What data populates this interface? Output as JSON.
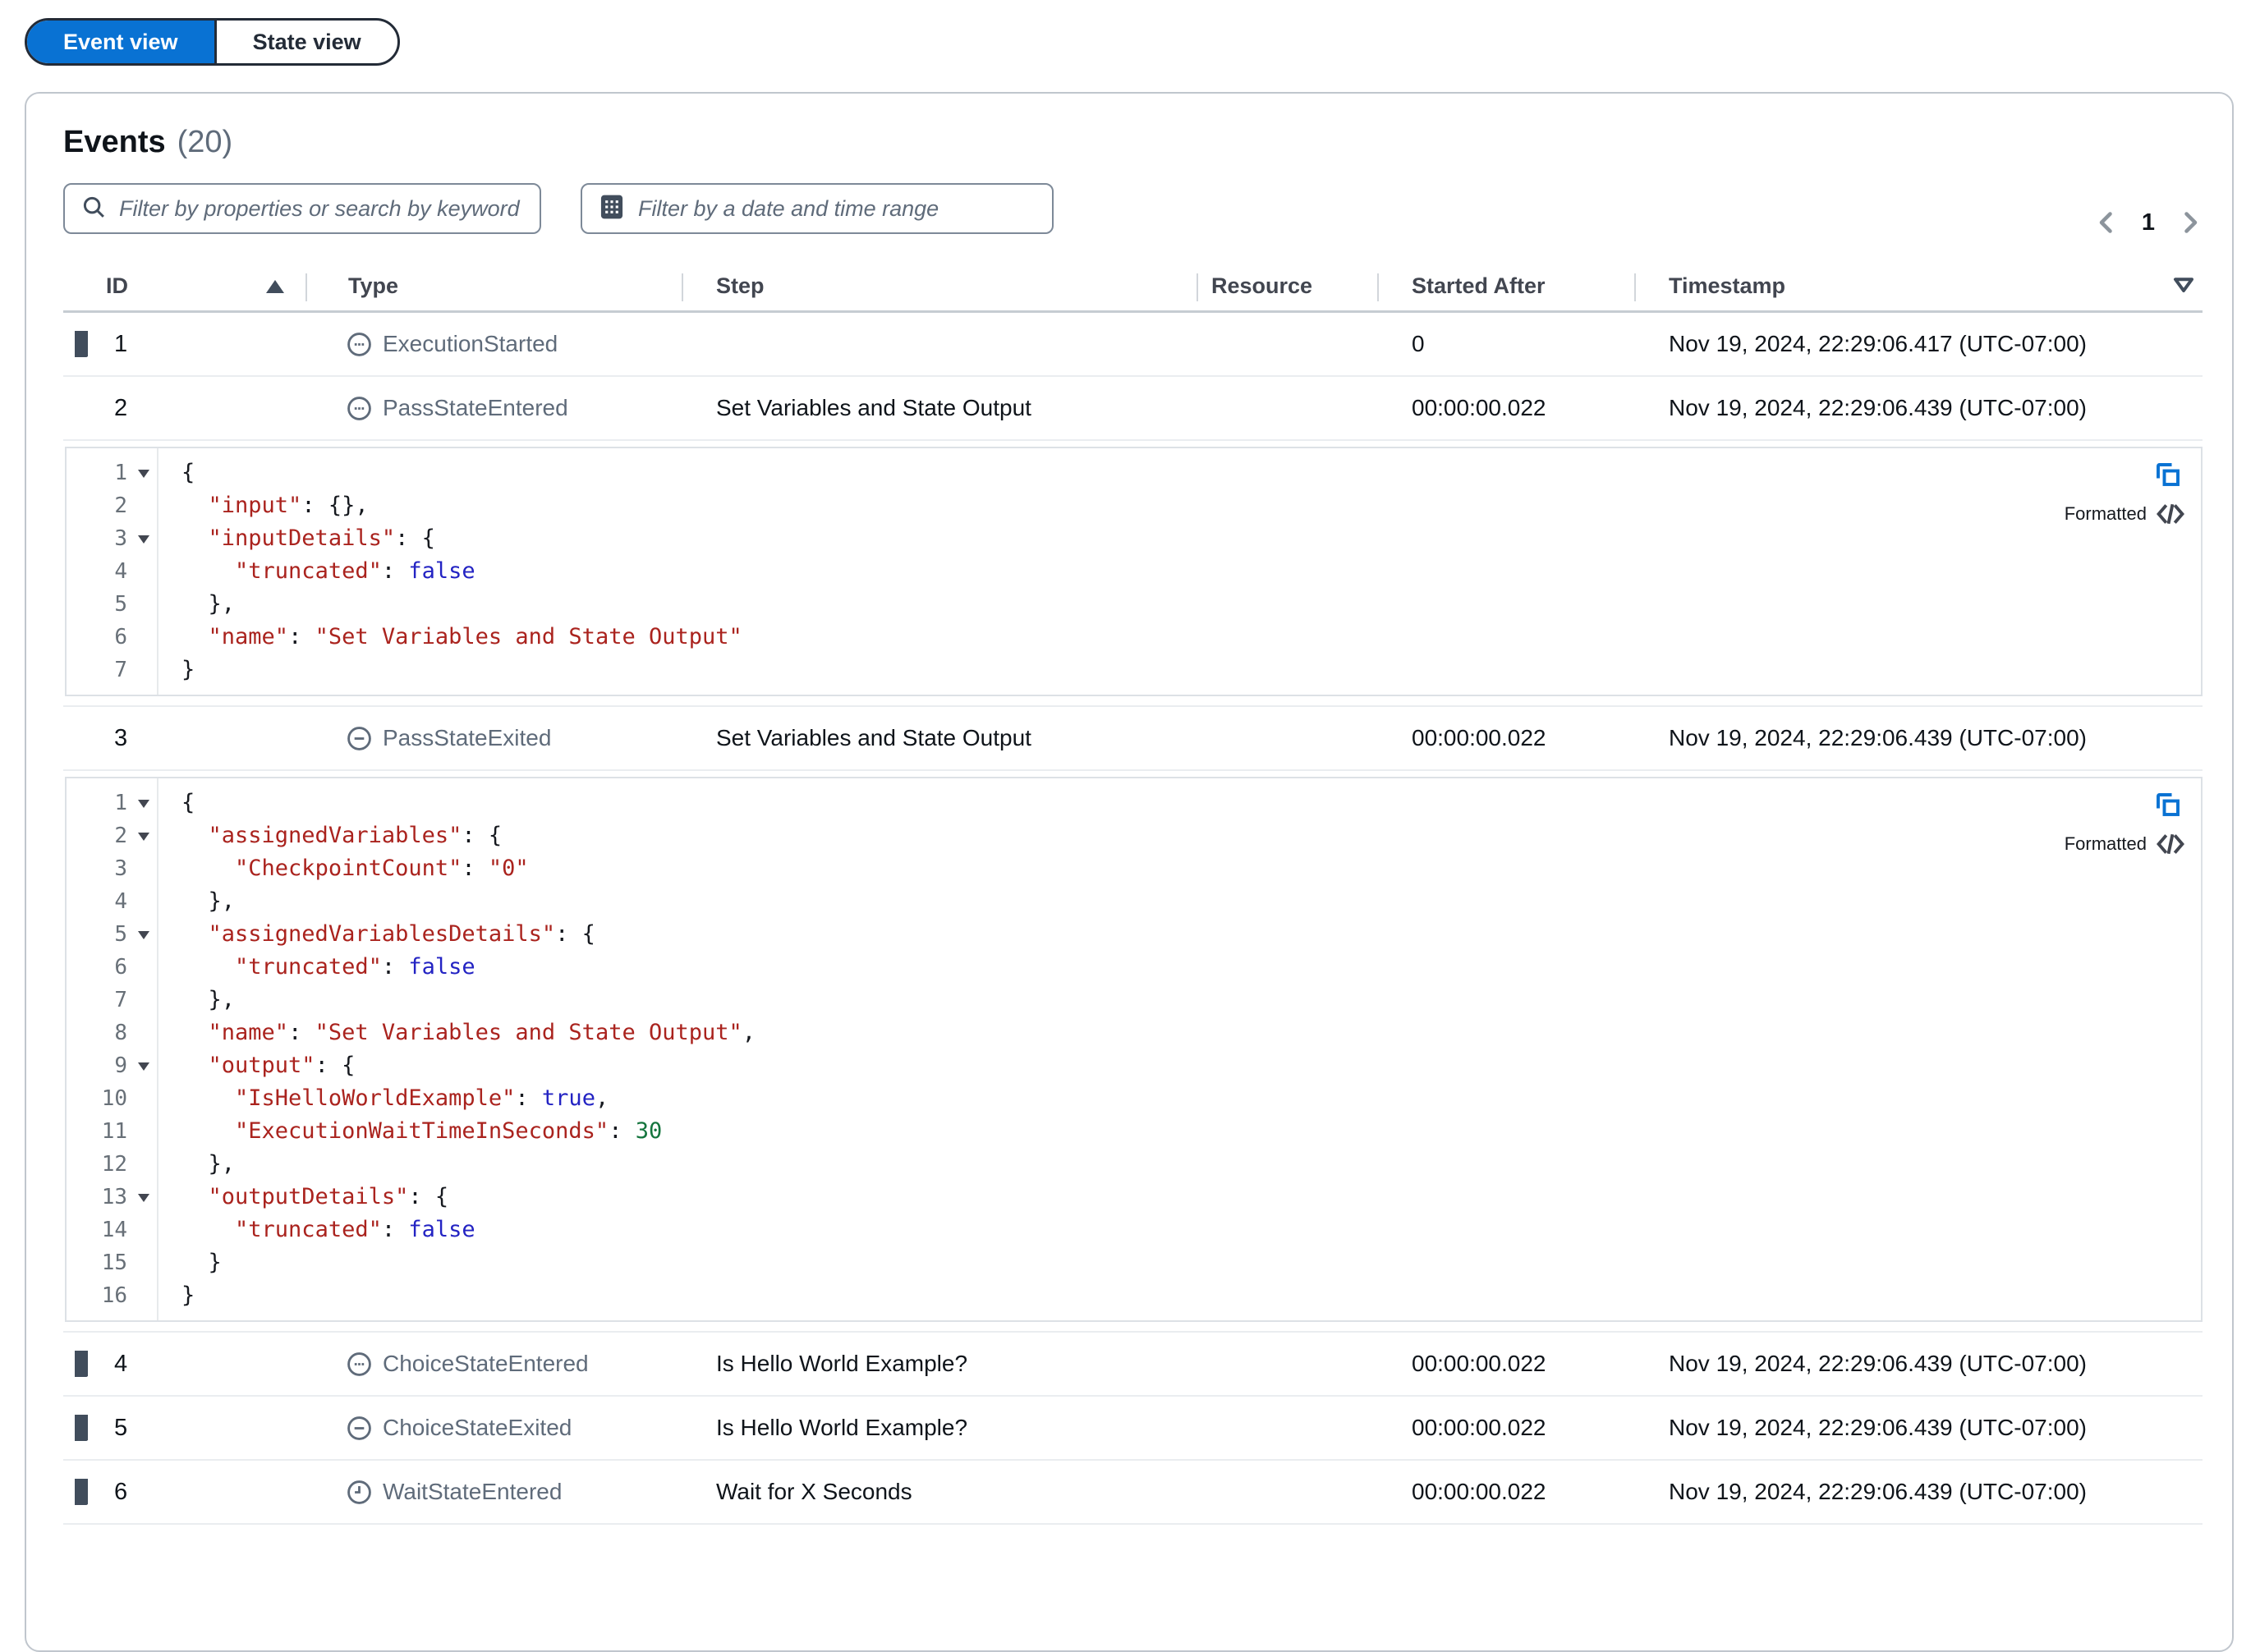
{
  "view_toggle": {
    "options": [
      {
        "label": "Event view",
        "selected": true
      },
      {
        "label": "State view",
        "selected": false
      }
    ]
  },
  "panel": {
    "title": "Events",
    "count": "(20)"
  },
  "filters": {
    "search_placeholder": "Filter by properties or search by keyword",
    "date_placeholder": "Filter by a date and time range"
  },
  "pagination": {
    "current_page": "1"
  },
  "table": {
    "columns": {
      "id": "ID",
      "type": "Type",
      "step": "Step",
      "resource": "Resource",
      "started_after": "Started After",
      "timestamp": "Timestamp"
    },
    "rows": [
      {
        "id": "1",
        "type": "ExecutionStarted",
        "icon": "status-pending-icon",
        "step": "",
        "resource": "",
        "started_after": "0",
        "timestamp": "Nov 19, 2024, 22:29:06.417 (UTC-07:00)",
        "expanded": false
      },
      {
        "id": "2",
        "type": "PassStateEntered",
        "icon": "status-pending-icon",
        "step": "Set Variables and State Output",
        "resource": "",
        "started_after": "00:00:00.022",
        "timestamp": "Nov 19, 2024, 22:29:06.439 (UTC-07:00)",
        "expanded": true
      },
      {
        "id": "3",
        "type": "PassStateExited",
        "icon": "status-stopped-icon",
        "step": "Set Variables and State Output",
        "resource": "",
        "started_after": "00:00:00.022",
        "timestamp": "Nov 19, 2024, 22:29:06.439 (UTC-07:00)",
        "expanded": true
      },
      {
        "id": "4",
        "type": "ChoiceStateEntered",
        "icon": "status-pending-icon",
        "step": "Is Hello World Example?",
        "resource": "",
        "started_after": "00:00:00.022",
        "timestamp": "Nov 19, 2024, 22:29:06.439 (UTC-07:00)",
        "expanded": false
      },
      {
        "id": "5",
        "type": "ChoiceStateExited",
        "icon": "status-stopped-icon",
        "step": "Is Hello World Example?",
        "resource": "",
        "started_after": "00:00:00.022",
        "timestamp": "Nov 19, 2024, 22:29:06.439 (UTC-07:00)",
        "expanded": false
      },
      {
        "id": "6",
        "type": "WaitStateEntered",
        "icon": "clock-icon",
        "step": "Wait for X Seconds",
        "resource": "",
        "started_after": "00:00:00.022",
        "timestamp": "Nov 19, 2024, 22:29:06.439 (UTC-07:00)",
        "expanded": false
      }
    ]
  },
  "code_blocks": [
    {
      "format_label": "Formatted",
      "lines": [
        {
          "n": 1,
          "fold": true,
          "ind": 0,
          "toks": [
            [
              "p",
              "{"
            ]
          ]
        },
        {
          "n": 2,
          "fold": false,
          "ind": 1,
          "toks": [
            [
              "k",
              "\"input\""
            ],
            [
              "p",
              ": "
            ],
            [
              "p",
              "{},"
            ]
          ]
        },
        {
          "n": 3,
          "fold": true,
          "ind": 1,
          "toks": [
            [
              "k",
              "\"inputDetails\""
            ],
            [
              "p",
              ": "
            ],
            [
              "p",
              "{"
            ]
          ]
        },
        {
          "n": 4,
          "fold": false,
          "ind": 2,
          "toks": [
            [
              "k",
              "\"truncated\""
            ],
            [
              "p",
              ": "
            ],
            [
              "b",
              "false"
            ]
          ]
        },
        {
          "n": 5,
          "fold": false,
          "ind": 1,
          "toks": [
            [
              "p",
              "},"
            ]
          ]
        },
        {
          "n": 6,
          "fold": false,
          "ind": 1,
          "toks": [
            [
              "k",
              "\"name\""
            ],
            [
              "p",
              ": "
            ],
            [
              "s",
              "\"Set Variables and State Output\""
            ]
          ]
        },
        {
          "n": 7,
          "fold": false,
          "ind": 0,
          "toks": [
            [
              "p",
              "}"
            ]
          ]
        }
      ]
    },
    {
      "format_label": "Formatted",
      "lines": [
        {
          "n": 1,
          "fold": true,
          "ind": 0,
          "toks": [
            [
              "p",
              "{"
            ]
          ]
        },
        {
          "n": 2,
          "fold": true,
          "ind": 1,
          "toks": [
            [
              "k",
              "\"assignedVariables\""
            ],
            [
              "p",
              ": "
            ],
            [
              "p",
              "{"
            ]
          ]
        },
        {
          "n": 3,
          "fold": false,
          "ind": 2,
          "toks": [
            [
              "k",
              "\"CheckpointCount\""
            ],
            [
              "p",
              ": "
            ],
            [
              "s",
              "\"0\""
            ]
          ]
        },
        {
          "n": 4,
          "fold": false,
          "ind": 1,
          "toks": [
            [
              "p",
              "},"
            ]
          ]
        },
        {
          "n": 5,
          "fold": true,
          "ind": 1,
          "toks": [
            [
              "k",
              "\"assignedVariablesDetails\""
            ],
            [
              "p",
              ": "
            ],
            [
              "p",
              "{"
            ]
          ]
        },
        {
          "n": 6,
          "fold": false,
          "ind": 2,
          "toks": [
            [
              "k",
              "\"truncated\""
            ],
            [
              "p",
              ": "
            ],
            [
              "b",
              "false"
            ]
          ]
        },
        {
          "n": 7,
          "fold": false,
          "ind": 1,
          "toks": [
            [
              "p",
              "},"
            ]
          ]
        },
        {
          "n": 8,
          "fold": false,
          "ind": 1,
          "toks": [
            [
              "k",
              "\"name\""
            ],
            [
              "p",
              ": "
            ],
            [
              "s",
              "\"Set Variables and State Output\""
            ],
            [
              "p",
              ","
            ]
          ]
        },
        {
          "n": 9,
          "fold": true,
          "ind": 1,
          "toks": [
            [
              "k",
              "\"output\""
            ],
            [
              "p",
              ": "
            ],
            [
              "p",
              "{"
            ]
          ]
        },
        {
          "n": 10,
          "fold": false,
          "ind": 2,
          "toks": [
            [
              "k",
              "\"IsHelloWorldExample\""
            ],
            [
              "p",
              ": "
            ],
            [
              "b",
              "true"
            ],
            [
              "p",
              ","
            ]
          ]
        },
        {
          "n": 11,
          "fold": false,
          "ind": 2,
          "toks": [
            [
              "k",
              "\"ExecutionWaitTimeInSeconds\""
            ],
            [
              "p",
              ": "
            ],
            [
              "num",
              "30"
            ]
          ]
        },
        {
          "n": 12,
          "fold": false,
          "ind": 1,
          "toks": [
            [
              "p",
              "},"
            ]
          ]
        },
        {
          "n": 13,
          "fold": true,
          "ind": 1,
          "toks": [
            [
              "k",
              "\"outputDetails\""
            ],
            [
              "p",
              ": "
            ],
            [
              "p",
              "{"
            ]
          ]
        },
        {
          "n": 14,
          "fold": false,
          "ind": 2,
          "toks": [
            [
              "k",
              "\"truncated\""
            ],
            [
              "p",
              ": "
            ],
            [
              "b",
              "false"
            ]
          ]
        },
        {
          "n": 15,
          "fold": false,
          "ind": 1,
          "toks": [
            [
              "p",
              "}"
            ]
          ]
        },
        {
          "n": 16,
          "fold": false,
          "ind": 0,
          "toks": [
            [
              "p",
              "}"
            ]
          ]
        }
      ]
    }
  ],
  "colors": {
    "accent_blue": "#0972d3",
    "code_key_string": "#aa231e",
    "code_boolean": "#2323c3",
    "code_number": "#15753e",
    "type_icon_gray": "#5f6b7a"
  }
}
